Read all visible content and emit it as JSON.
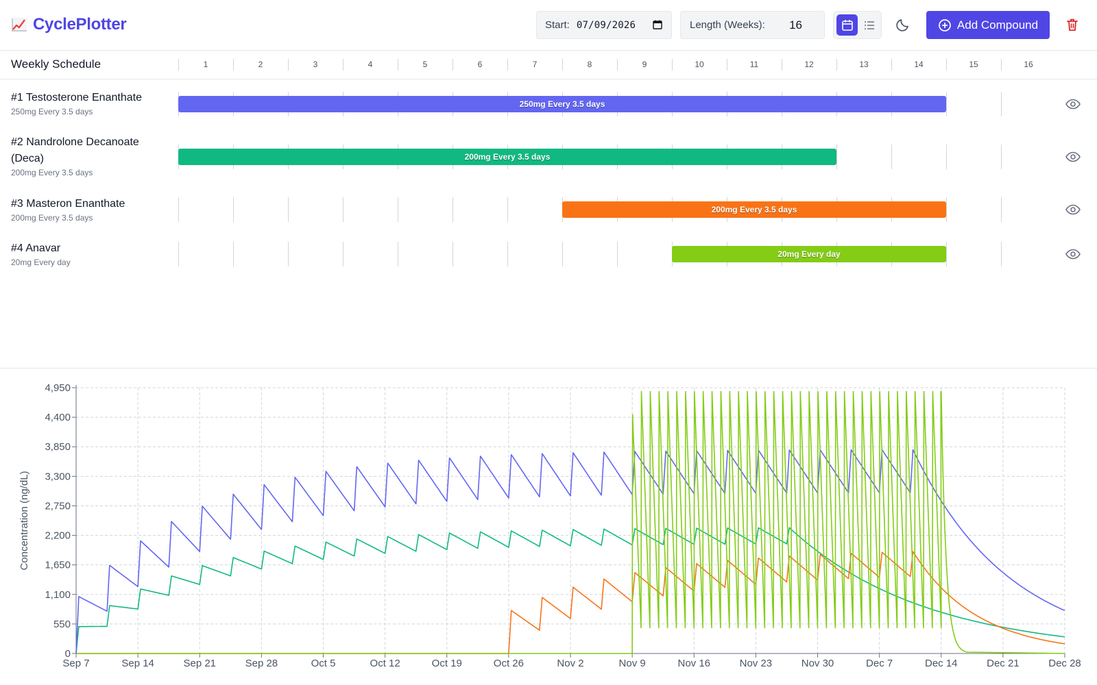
{
  "app": {
    "title": "CyclePlotter"
  },
  "toolbar": {
    "start_label": "Start:",
    "start_value": "07/09/2026",
    "length_label": "Length (Weeks):",
    "length_value": "16",
    "add_label": "Add Compound",
    "accent_color": "#4f46e5",
    "danger_color": "#dc2626"
  },
  "schedule": {
    "title": "Weekly Schedule",
    "weeks": [
      "1",
      "2",
      "3",
      "4",
      "5",
      "6",
      "7",
      "8",
      "9",
      "10",
      "11",
      "12",
      "13",
      "14",
      "15",
      "16"
    ],
    "compounds": [
      {
        "name": "#1 Testosterone Enanthate",
        "sub": "250mg Every 3.5 days",
        "bar_label": "250mg Every 3.5 days",
        "start_week": 1,
        "end_week": 14,
        "color": "#6366f1",
        "icon": "eye-icon"
      },
      {
        "name": "#2 Nandrolone Decanoate (Deca)",
        "sub": "200mg Every 3.5 days",
        "bar_label": "200mg Every 3.5 days",
        "start_week": 1,
        "end_week": 12,
        "color": "#10b981",
        "icon": "eye-icon"
      },
      {
        "name": "#3 Masteron Enanthate",
        "sub": "200mg Every 3.5 days",
        "bar_label": "200mg Every 3.5 days",
        "start_week": 8,
        "end_week": 14,
        "color": "#f97316",
        "icon": "eye-icon"
      },
      {
        "name": "#4 Anavar",
        "sub": "20mg Every day",
        "bar_label": "20mg Every day",
        "start_week": 10,
        "end_week": 14,
        "color": "#84cc16",
        "icon": "eye-icon"
      }
    ]
  },
  "chart_data": {
    "type": "line",
    "title": "",
    "xlabel": "",
    "ylabel": "Concentration (ng/dL)",
    "x_ticks": [
      "Sep 7",
      "Sep 14",
      "Sep 21",
      "Sep 28",
      "Oct 5",
      "Oct 12",
      "Oct 19",
      "Oct 26",
      "Nov 2",
      "Nov 9",
      "Nov 16",
      "Nov 23",
      "Nov 30",
      "Dec 7",
      "Dec 14",
      "Dec 21",
      "Dec 28"
    ],
    "y_ticks": [
      "0",
      "550",
      "1,100",
      "1,650",
      "2,200",
      "2,750",
      "3,300",
      "3,850",
      "4,400",
      "4,950"
    ],
    "ylim": [
      0,
      4950
    ],
    "x_range_days": [
      0,
      112
    ],
    "grid": true,
    "series": [
      {
        "color": "#6366f1",
        "kind": "ester",
        "start_day": 0,
        "stop_day": 98,
        "interval": 3.5,
        "peak_first": 1060,
        "ss_trough": 3000,
        "ss_peak": 3800,
        "end_value": 800
      },
      {
        "color": "#10b981",
        "kind": "ester",
        "start_day": 0,
        "stop_day": 84,
        "interval": 3.5,
        "peak_first": 500,
        "ss_trough": 2050,
        "ss_peak": 2350,
        "end_value": 310
      },
      {
        "color": "#f97316",
        "kind": "ester",
        "start_day": 49,
        "stop_day": 98,
        "interval": 3.5,
        "peak_first": 800,
        "ss_trough": 1500,
        "ss_peak": 1950,
        "end_value": 180
      },
      {
        "color": "#84cc16",
        "kind": "daily",
        "start_day": 63,
        "stop_day": 98,
        "interval": 1,
        "first_peak": 4450,
        "peak": 4880,
        "trough": 480,
        "end_value": 0
      }
    ]
  }
}
